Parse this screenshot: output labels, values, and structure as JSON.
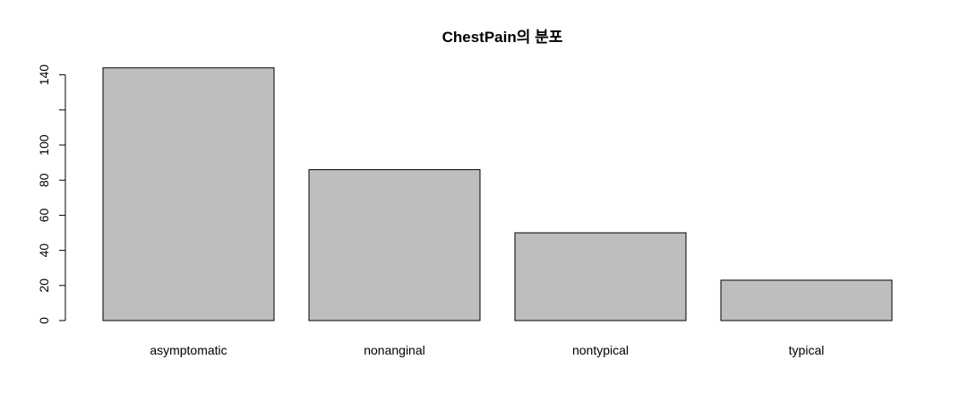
{
  "chart_data": {
    "type": "bar",
    "title": "ChestPain의 분포",
    "xlabel": "",
    "ylabel": "",
    "categories": [
      "asymptomatic",
      "nonanginal",
      "nontypical",
      "typical"
    ],
    "values": [
      144,
      86,
      50,
      23
    ],
    "ylim": [
      0,
      144
    ],
    "y_ticks": [
      0,
      20,
      40,
      60,
      80,
      100,
      120,
      140
    ],
    "y_tick_labels": [
      "0",
      "20",
      "40",
      "60",
      "80",
      "100",
      "",
      "140"
    ],
    "bar_color": "#bebebe",
    "grid": false,
    "legend": "none"
  }
}
